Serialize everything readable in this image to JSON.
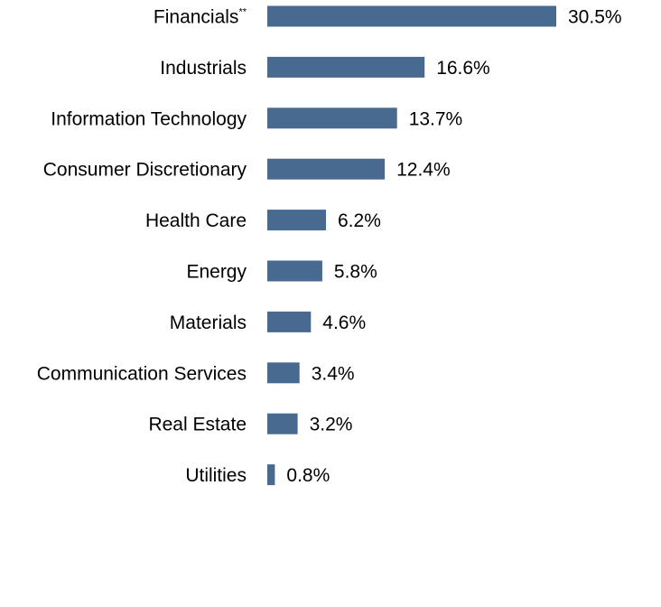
{
  "chart_data": {
    "type": "bar",
    "orientation": "horizontal",
    "categories": [
      "Financials",
      "Industrials",
      "Information Technology",
      "Consumer Discretionary",
      "Health Care",
      "Energy",
      "Materials",
      "Communication Services",
      "Real Estate",
      "Utilities"
    ],
    "footnote_markers": [
      "**",
      "",
      "",
      "",
      "",
      "",
      "",
      "",
      "",
      ""
    ],
    "values": [
      30.5,
      16.6,
      13.7,
      12.4,
      6.2,
      5.8,
      4.6,
      3.4,
      3.2,
      0.8
    ],
    "value_labels": [
      "30.5%",
      "16.6%",
      "13.7%",
      "12.4%",
      "6.2%",
      "5.8%",
      "4.6%",
      "3.4%",
      "3.2%",
      "0.8%"
    ],
    "unit": "%",
    "bar_color": "#486A90",
    "grid": false,
    "legend": "none"
  }
}
